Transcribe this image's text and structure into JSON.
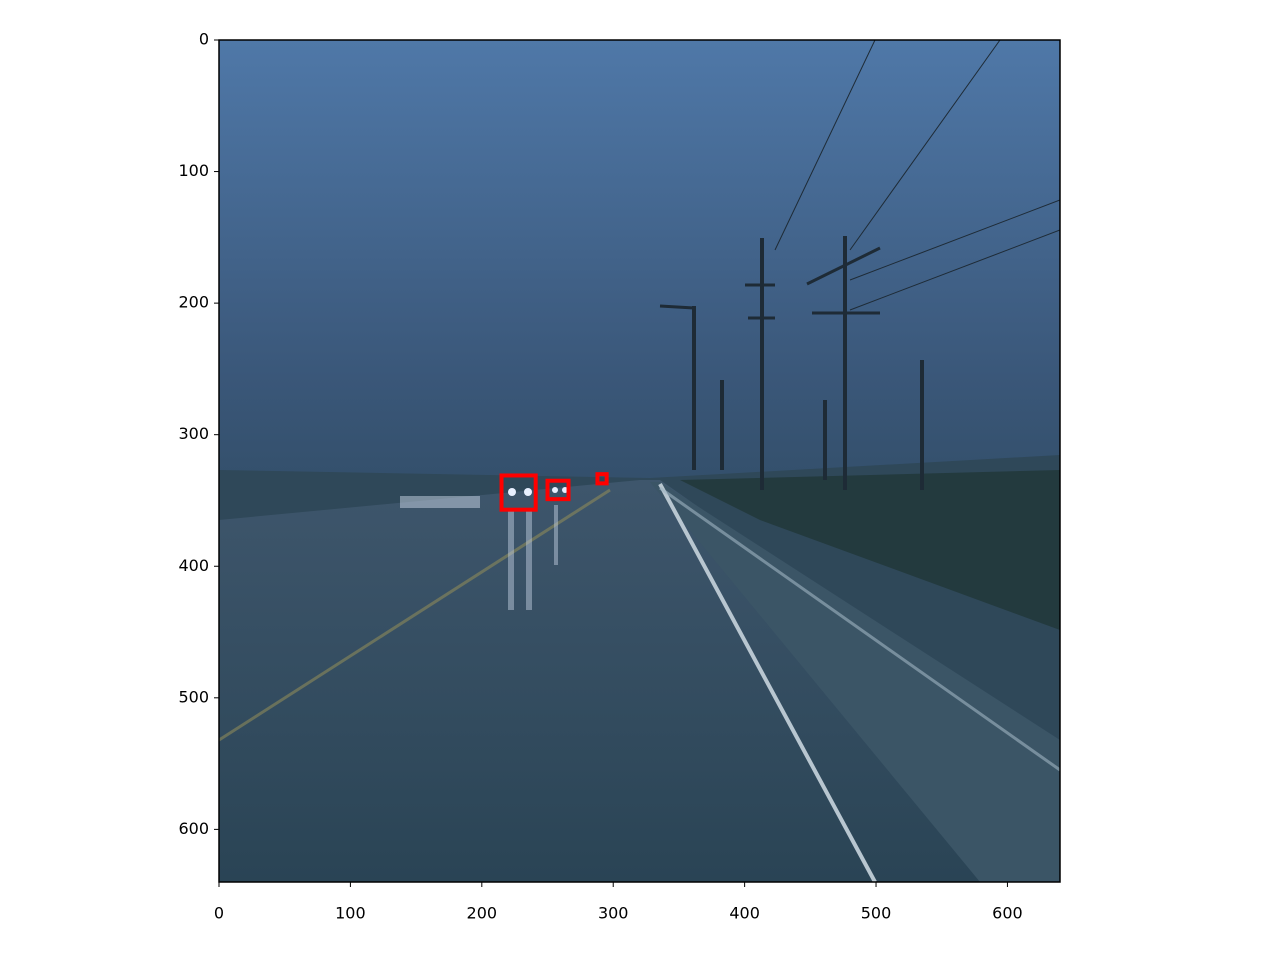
{
  "chart_data": {
    "type": "image",
    "xlim": [
      0,
      640
    ],
    "ylim": [
      640,
      0
    ],
    "xticks": [
      0,
      100,
      200,
      300,
      400,
      500,
      600
    ],
    "yticks": [
      0,
      100,
      200,
      300,
      400,
      500,
      600
    ],
    "box_color": "#ff0000",
    "boxes": [
      [
        215,
        331,
        241,
        357
      ],
      [
        250,
        335,
        266,
        349
      ],
      [
        288,
        330,
        295,
        337
      ]
    ]
  }
}
